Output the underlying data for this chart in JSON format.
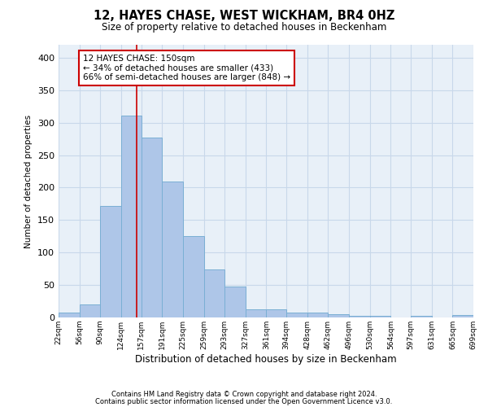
{
  "title": "12, HAYES CHASE, WEST WICKHAM, BR4 0HZ",
  "subtitle": "Size of property relative to detached houses in Beckenham",
  "xlabel": "Distribution of detached houses by size in Beckenham",
  "ylabel": "Number of detached properties",
  "bar_color": "#aec6e8",
  "bar_edge_color": "#7aafd4",
  "grid_color": "#c8d8ea",
  "background_color": "#e8f0f8",
  "vline_x": 150,
  "vline_color": "#cc0000",
  "annotation_line1": "12 HAYES CHASE: 150sqm",
  "annotation_line2": "← 34% of detached houses are smaller (433)",
  "annotation_line3": "66% of semi-detached houses are larger (848) →",
  "annotation_box_color": "#ffffff",
  "annotation_box_edge": "#cc0000",
  "footer1": "Contains HM Land Registry data © Crown copyright and database right 2024.",
  "footer2": "Contains public sector information licensed under the Open Government Licence v3.0.",
  "bin_edges": [
    22,
    56,
    90,
    124,
    157,
    191,
    225,
    259,
    293,
    327,
    361,
    394,
    428,
    462,
    496,
    530,
    564,
    597,
    631,
    665,
    699
  ],
  "bar_heights": [
    7,
    20,
    172,
    311,
    277,
    210,
    125,
    74,
    48,
    13,
    12,
    8,
    8,
    5,
    3,
    2,
    0,
    3,
    0,
    4
  ],
  "ylim": [
    0,
    420
  ],
  "yticks": [
    0,
    50,
    100,
    150,
    200,
    250,
    300,
    350,
    400
  ],
  "figsize": [
    6.0,
    5.0
  ],
  "dpi": 100
}
